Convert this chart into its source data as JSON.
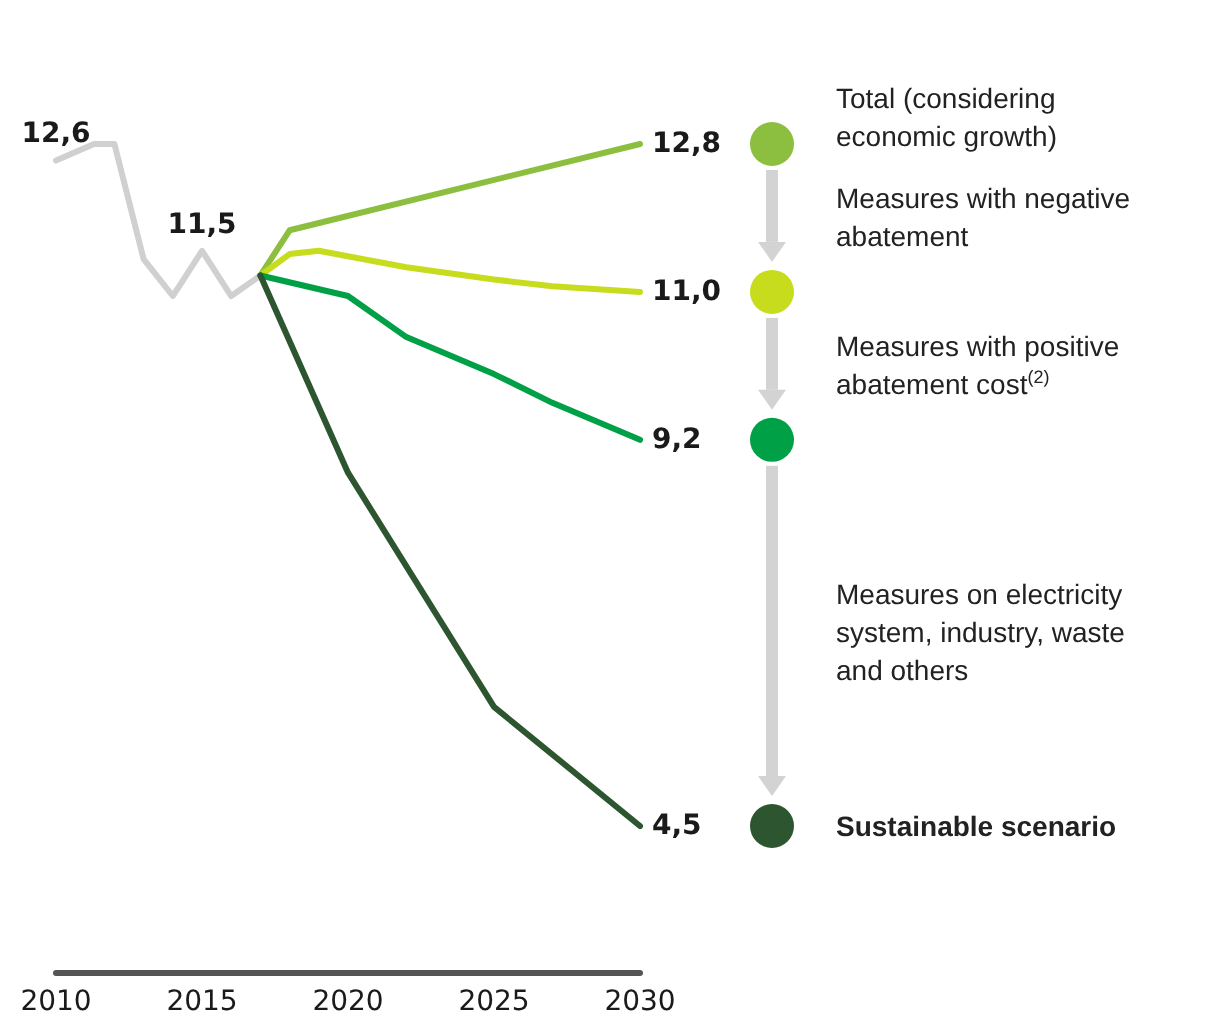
{
  "chart_data": {
    "type": "line",
    "xlim": [
      2010,
      2030
    ],
    "xticks": [
      2010,
      2015,
      2020,
      2025,
      2030
    ],
    "tick_labels": "x",
    "grid": false,
    "legend": "right",
    "marker": "none",
    "series": [
      {
        "color": "#d0d0d0",
        "x": [
          2010,
          2011.3,
          2012,
          2013,
          2014,
          2015,
          2016,
          2017
        ],
        "values": [
          12.6,
          12.8,
          12.8,
          11.4,
          10.95,
          11.5,
          10.95,
          11.2
        ],
        "value_labels": [
          "12,6",
          null,
          null,
          null,
          null,
          "11,5",
          null,
          null
        ]
      },
      {
        "name": "Total (considering economic growth)",
        "color": "#8cbf3f",
        "x": [
          2017,
          2018,
          2030
        ],
        "values": [
          11.2,
          11.75,
          12.8
        ],
        "value_labels": [
          null,
          null,
          "12,8"
        ]
      },
      {
        "color": "#c8dc1e",
        "x": [
          2017,
          2018,
          2019,
          2022,
          2025,
          2027,
          2030
        ],
        "values": [
          11.2,
          11.46,
          11.5,
          11.3,
          11.15,
          11.07,
          11.0
        ],
        "value_labels": [
          null,
          null,
          null,
          null,
          null,
          null,
          "11,0"
        ]
      },
      {
        "color": "#00a046",
        "x": [
          2017,
          2020,
          2022,
          2025,
          2027,
          2030
        ],
        "values": [
          11.2,
          10.95,
          10.45,
          10.0,
          9.65,
          9.2
        ],
        "value_labels": [
          null,
          null,
          null,
          null,
          null,
          "9,2"
        ]
      },
      {
        "name": "Sustainable scenario",
        "color": "#2d5530",
        "x": [
          2017,
          2020,
          2025,
          2030
        ],
        "values": [
          11.2,
          8.8,
          5.95,
          4.5
        ],
        "value_labels": [
          null,
          null,
          null,
          "4,5"
        ]
      }
    ],
    "annotations": [
      "Measures with negative abatement",
      "Measures with positive abatement cost$^{(2)}$",
      "Measures on electricity system, industry, waste and others"
    ]
  }
}
